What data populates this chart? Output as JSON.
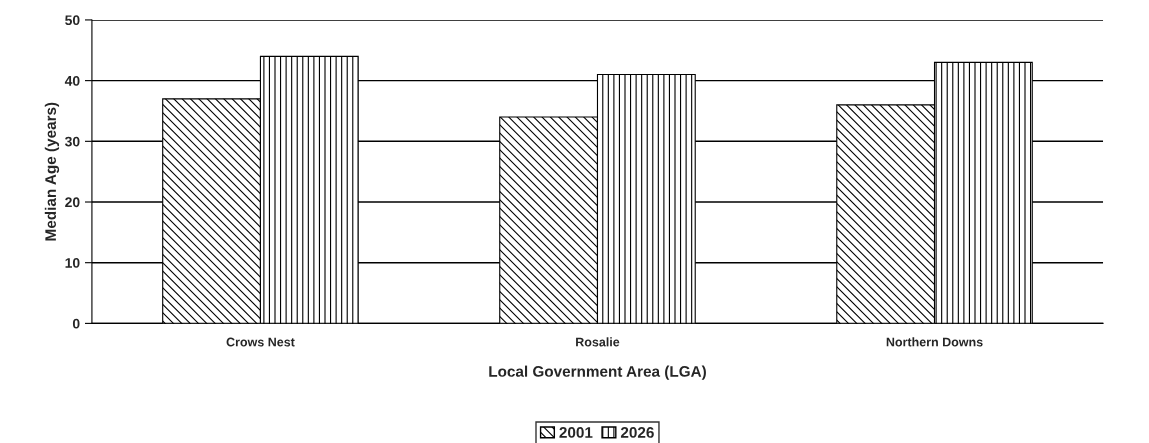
{
  "chart_data": {
    "type": "bar",
    "xlabel": "Local Government Area (LGA)",
    "ylabel": "Median Age (years)",
    "categories": [
      "Crows Nest",
      "Rosalie",
      "Northern Downs"
    ],
    "series": [
      {
        "name": "2001",
        "color": "#000000",
        "values": [
          37,
          34,
          36
        ]
      },
      {
        "name": "2026",
        "color": "#000000",
        "values": [
          44,
          41,
          43
        ]
      }
    ],
    "ylim": [
      0,
      50
    ],
    "yticks": [
      0,
      10,
      20,
      30,
      40,
      50
    ],
    "grid": "y",
    "legend": "bottom"
  }
}
